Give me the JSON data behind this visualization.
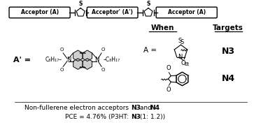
{
  "bg_color": "#ffffff",
  "acceptor_a_text": "Acceptor (A)",
  "acceptor_ap_text": "Acceptor' (A')",
  "when_label": "When",
  "targets_label": "Targets",
  "n3_label": "N3",
  "n4_label": "N4",
  "bottom_text1_prefix": "Non-fullerene electron acceptors ",
  "bottom_text1_bold1": "N3",
  "bottom_text1_mid": " and ",
  "bottom_text1_bold2": "N4",
  "bottom_text2_prefix": "PCE = 4.76% (P3HT: ",
  "bottom_text2_bold": "N3",
  "bottom_text2_suffix": " (1: 1.2))"
}
